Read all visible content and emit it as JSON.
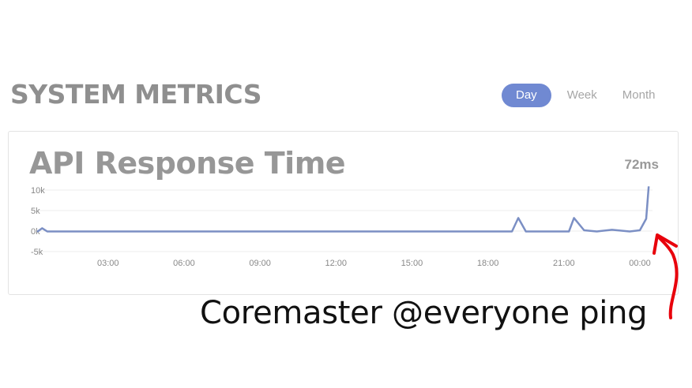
{
  "header": {
    "title": "SYSTEM METRICS",
    "tabs": [
      {
        "label": "Day",
        "active": true
      },
      {
        "label": "Week",
        "active": false
      },
      {
        "label": "Month",
        "active": false
      }
    ]
  },
  "panel": {
    "title": "API Response Time",
    "current_value": "72ms"
  },
  "chart_data": {
    "type": "line",
    "title": "API Response Time",
    "xlabel": "",
    "ylabel": "",
    "y_ticks": [
      "10k",
      "5k",
      "0k",
      "-5k"
    ],
    "y_tick_values": [
      10000,
      5000,
      0,
      -5000
    ],
    "x_ticks": [
      "03:00",
      "06:00",
      "09:00",
      "12:00",
      "15:00",
      "18:00",
      "21:00",
      "00:00"
    ],
    "x_tick_values": [
      3,
      6,
      9,
      12,
      15,
      18,
      21,
      24
    ],
    "xlim": [
      0.2,
      24.5
    ],
    "ylim": [
      -5000,
      10000
    ],
    "grid": true,
    "color": "#7b8fc4",
    "series": [
      {
        "x": [
          0.2,
          0.4,
          0.6,
          0.9,
          18.6,
          18.95,
          19.2,
          19.5,
          20.8,
          21.2,
          21.4,
          21.8,
          22.3,
          22.9,
          23.6,
          24.0,
          24.25,
          24.35
        ],
        "values": [
          -200,
          700,
          -100,
          -100,
          -100,
          -100,
          3200,
          -100,
          -100,
          -100,
          3200,
          200,
          -100,
          300,
          -100,
          200,
          3000,
          10900
        ]
      }
    ]
  },
  "annotation": {
    "caption": "Coremaster @everyone ping",
    "arrow_color": "#e8000b"
  }
}
